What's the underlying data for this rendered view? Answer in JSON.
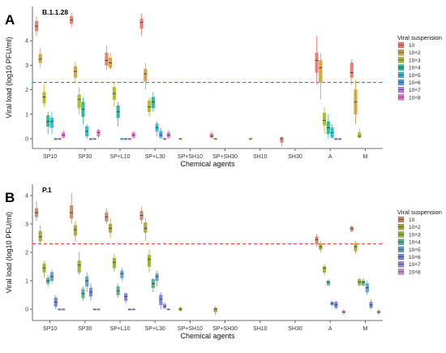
{
  "figure": {
    "colors": {
      "threshold_line": "#e04040",
      "median_line": "#333333",
      "outlier": "#222222",
      "axis": "#444444"
    }
  },
  "chart_data": [
    {
      "type": "boxplot",
      "panel_letter": "A",
      "title": "B.1.1.28",
      "xlabel": "Chemical agents",
      "ylabel": "Viral load (log10 PFU/ml)",
      "ylim": [
        -0.4,
        5.4
      ],
      "yticks": [
        0,
        1,
        2,
        3,
        4
      ],
      "grid": false,
      "threshold_y": 2.3,
      "categories": [
        "SP10",
        "SP30",
        "SP+L10",
        "SP+L30",
        "SP+SH10",
        "SP+SH30",
        "SH10",
        "SH30",
        "A",
        "M"
      ],
      "legend": {
        "title": "Viral suspension",
        "position": "right",
        "entries": [
          "10",
          "10^2",
          "10^3",
          "10^4",
          "10^5",
          "10^6",
          "10^7",
          "10^8"
        ],
        "colors": [
          "#e8776d",
          "#d2a036",
          "#a9b820",
          "#24b592",
          "#1fbfcc",
          "#3e9de0",
          "#b67ae8",
          "#e96bc7"
        ]
      },
      "series": [
        {
          "name": "10",
          "boxes": [
            [
              4.2,
              4.4,
              4.6,
              4.8,
              5.0
            ],
            [
              4.55,
              4.7,
              4.85,
              5.0,
              5.15
            ],
            [
              2.8,
              3.0,
              3.2,
              3.5,
              3.8
            ],
            [
              4.2,
              4.5,
              4.75,
              4.9,
              5.1
            ],
            null,
            [
              0,
              0.05,
              0.1,
              0.2,
              0.3
            ],
            null,
            [
              -0.3,
              -0.15,
              0,
              0.05,
              0.1
            ],
            [
              2.2,
              2.7,
              3.2,
              3.5,
              4.2
            ],
            [
              2.2,
              2.5,
              2.7,
              3.1,
              3.25
            ]
          ]
        },
        {
          "name": "10^2",
          "boxes": [
            [
              2.9,
              3.1,
              3.25,
              3.45,
              3.7
            ],
            [
              2.3,
              2.5,
              2.75,
              2.95,
              3.15
            ],
            [
              2.8,
              2.9,
              3.1,
              3.3,
              3.5
            ],
            [
              2.0,
              2.35,
              2.65,
              2.85,
              3.1
            ],
            [
              0,
              0,
              0,
              0,
              0
            ],
            [
              0,
              0,
              0,
              0,
              0
            ],
            [
              0,
              0,
              0,
              0,
              0
            ],
            null,
            [
              1.6,
              2.3,
              2.9,
              3.2,
              3.5
            ],
            [
              0.6,
              1.0,
              1.5,
              2.0,
              2.4
            ]
          ]
        },
        {
          "name": "10^3",
          "boxes": [
            [
              1.3,
              1.45,
              1.7,
              1.9,
              2.2
            ],
            [
              1.0,
              1.25,
              1.6,
              1.8,
              2.1
            ],
            [
              1.3,
              1.6,
              1.85,
              2.1,
              2.3
            ],
            [
              0.9,
              1.1,
              1.3,
              1.55,
              1.7
            ],
            null,
            null,
            null,
            null,
            [
              0.2,
              0.55,
              0.75,
              1.05,
              1.3
            ],
            [
              0,
              0.05,
              0.1,
              0.25,
              0.4
            ]
          ]
        },
        {
          "name": "10^4",
          "boxes": [
            [
              0.2,
              0.5,
              0.7,
              0.95,
              1.1
            ],
            [
              0.6,
              0.9,
              1.2,
              1.5,
              1.7
            ],
            [
              0.5,
              0.85,
              1.1,
              1.35,
              1.5
            ],
            [
              1.1,
              1.25,
              1.5,
              1.7,
              1.9
            ],
            null,
            null,
            null,
            null,
            [
              0,
              0.2,
              0.45,
              0.7,
              1.0
            ],
            null
          ]
        },
        {
          "name": "10^5",
          "boxes": [
            [
              0.2,
              0.45,
              0.7,
              0.85,
              1.1
            ],
            [
              0,
              0.1,
              0.3,
              0.5,
              0.6
            ],
            [
              0,
              0,
              0,
              0,
              0
            ],
            [
              0.1,
              0.3,
              0.45,
              0.6,
              0.7
            ],
            null,
            null,
            null,
            null,
            [
              0,
              0.05,
              0.25,
              0.45,
              0.6
            ],
            null
          ]
        },
        {
          "name": "10^6",
          "boxes": [
            [
              0,
              0,
              0,
              0,
              0
            ],
            [
              0,
              0,
              0,
              0,
              0
            ],
            [
              0,
              0,
              0,
              0,
              0
            ],
            [
              0,
              0.05,
              0.15,
              0.3,
              0.45
            ],
            null,
            null,
            null,
            null,
            [
              0,
              0,
              0,
              0,
              0
            ],
            null
          ]
        },
        {
          "name": "10^7",
          "boxes": [
            [
              0,
              0,
              0,
              0,
              0
            ],
            [
              0,
              0,
              0,
              0,
              0
            ],
            [
              0,
              0,
              0,
              0,
              0
            ],
            [
              0,
              0,
              0,
              0,
              0
            ],
            null,
            null,
            null,
            null,
            [
              0,
              0,
              0,
              0,
              0
            ],
            null
          ]
        },
        {
          "name": "10^8",
          "boxes": [
            [
              0,
              0.05,
              0.15,
              0.25,
              0.35
            ],
            [
              0,
              0.1,
              0.25,
              0.35,
              0.4
            ],
            [
              0,
              0.05,
              0.15,
              0.25,
              0.3
            ],
            [
              0,
              0.05,
              0.15,
              0.25,
              0.35
            ],
            null,
            null,
            null,
            null,
            null,
            null
          ]
        }
      ]
    },
    {
      "type": "boxplot",
      "panel_letter": "B",
      "title": "P.1",
      "xlabel": "Chemical agents",
      "ylabel": "Viral load (log10 PFU/ml)",
      "ylim": [
        -0.4,
        4.4
      ],
      "yticks": [
        0,
        1,
        2,
        3,
        4
      ],
      "grid": false,
      "threshold_y": 2.3,
      "categories": [
        "SP10",
        "SP30",
        "SP+L10",
        "SP+L30",
        "SP+SH10",
        "SP+SH30",
        "SH10",
        "SH30",
        "A",
        "M"
      ],
      "legend": {
        "title": "Viral suspension",
        "position": "right",
        "entries": [
          "10",
          "10^2",
          "10^3",
          "10^4",
          "10^5",
          "10^6",
          "10^7",
          "10^8"
        ],
        "colors": [
          "#c0876a",
          "#a7a434",
          "#8fb326",
          "#4fae84",
          "#5e9bc8",
          "#7180d8",
          "#9b86d6",
          "#c78cd0"
        ]
      },
      "series": [
        {
          "name": "10",
          "boxes": [
            [
              3.1,
              3.25,
              3.4,
              3.55,
              3.8
            ],
            [
              3.0,
              3.2,
              3.4,
              3.65,
              4.1
            ],
            [
              3.0,
              3.1,
              3.25,
              3.4,
              3.55
            ],
            [
              3.0,
              3.15,
              3.3,
              3.45,
              3.6
            ],
            null,
            null,
            null,
            null,
            [
              2.2,
              2.3,
              2.45,
              2.55,
              2.65
            ],
            [
              2.7,
              2.75,
              2.85,
              2.9,
              2.95
            ]
          ]
        },
        {
          "name": "10^2",
          "boxes": [
            [
              2.3,
              2.4,
              2.55,
              2.75,
              2.95
            ],
            [
              2.4,
              2.6,
              2.8,
              2.95,
              3.1
            ],
            [
              2.5,
              2.7,
              2.85,
              3.0,
              3.2
            ],
            [
              2.4,
              2.7,
              2.85,
              3.05,
              3.2
            ],
            [
              -0.1,
              -0.05,
              0,
              0.05,
              0.1
            ],
            [
              -0.2,
              -0.1,
              0,
              0.05,
              0.1
            ],
            null,
            null,
            [
              2.0,
              2.1,
              2.2,
              2.3,
              2.4
            ],
            [
              1.95,
              2.05,
              2.2,
              2.3,
              2.4
            ]
          ]
        },
        {
          "name": "10^3",
          "boxes": [
            [
              1.1,
              1.3,
              1.45,
              1.6,
              1.7
            ],
            [
              1.2,
              1.3,
              1.55,
              1.7,
              2.0
            ],
            [
              1.3,
              1.45,
              1.65,
              1.8,
              1.95
            ],
            [
              1.3,
              1.5,
              1.75,
              1.9,
              2.1
            ],
            null,
            null,
            null,
            null,
            [
              1.2,
              1.3,
              1.45,
              1.5,
              1.6
            ],
            [
              0.8,
              0.85,
              0.95,
              1.05,
              1.1
            ]
          ]
        },
        {
          "name": "10^4",
          "boxes": [
            [
              0.8,
              0.9,
              1.0,
              1.1,
              1.2
            ],
            [
              0.3,
              0.4,
              0.55,
              0.7,
              0.8
            ],
            [
              0.4,
              0.5,
              0.65,
              0.8,
              0.9
            ],
            [
              0.6,
              0.75,
              0.9,
              1.05,
              1.1
            ],
            null,
            null,
            null,
            null,
            [
              0.8,
              0.85,
              0.95,
              1.0,
              1.05
            ],
            [
              0.8,
              0.85,
              0.95,
              1.0,
              1.1
            ]
          ]
        },
        {
          "name": "10^5",
          "boxes": [
            [
              0.9,
              1.0,
              1.15,
              1.3,
              1.4
            ],
            [
              0.6,
              0.8,
              1.0,
              1.15,
              1.3
            ],
            [
              1.0,
              1.1,
              1.25,
              1.35,
              1.45
            ],
            [
              0.8,
              1.0,
              1.15,
              1.25,
              1.35
            ],
            null,
            null,
            null,
            null,
            [
              0.1,
              0.15,
              0.2,
              0.25,
              0.3
            ],
            [
              0.5,
              0.6,
              0.75,
              0.9,
              1.0
            ]
          ]
        },
        {
          "name": "10^6",
          "boxes": [
            [
              0,
              0.1,
              0.25,
              0.4,
              0.5
            ],
            [
              0.3,
              0.45,
              0.6,
              0.75,
              0.9
            ],
            [
              0.2,
              0.3,
              0.45,
              0.55,
              0.6
            ],
            [
              0,
              0.15,
              0.35,
              0.5,
              0.6
            ],
            null,
            null,
            null,
            null,
            [
              0,
              0.05,
              0.15,
              0.25,
              0.3
            ],
            [
              0,
              0.05,
              0.15,
              0.25,
              0.35
            ]
          ]
        },
        {
          "name": "10^7",
          "boxes": [
            [
              0,
              0,
              0,
              0,
              0
            ],
            [
              0,
              0,
              0,
              0,
              0
            ],
            [
              0,
              0,
              0,
              0,
              0
            ],
            [
              0,
              0.03,
              0.1,
              0.18,
              0.25
            ],
            null,
            null,
            null,
            null,
            null,
            null
          ]
        },
        {
          "name": "10^8",
          "boxes": [
            [
              0,
              0,
              0,
              0,
              0
            ],
            [
              0,
              0,
              0,
              0,
              0
            ],
            [
              0,
              0,
              0,
              0,
              0
            ],
            [
              0,
              0,
              0,
              0,
              0
            ],
            null,
            null,
            null,
            null,
            [
              -0.2,
              -0.15,
              -0.1,
              -0.05,
              0
            ],
            [
              -0.2,
              -0.15,
              -0.1,
              -0.05,
              0
            ]
          ]
        }
      ]
    }
  ]
}
